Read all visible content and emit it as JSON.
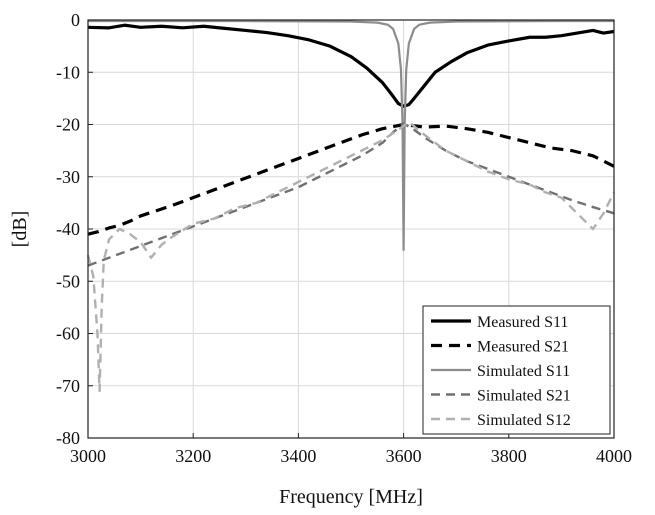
{
  "chart_data": {
    "type": "line",
    "title": "",
    "xlabel": "Frequency [MHz]",
    "ylabel": "[dB]",
    "xlim": [
      3000,
      4000
    ],
    "ylim": [
      -80,
      0
    ],
    "xticks": [
      3000,
      3200,
      3400,
      3600,
      3800,
      4000
    ],
    "yticks": [
      0,
      -10,
      -20,
      -30,
      -40,
      -50,
      -60,
      -70,
      -80
    ],
    "grid": true,
    "legend_position": "bottom-right",
    "series": [
      {
        "name": "Measured S11",
        "color": "#000000",
        "style": "solid",
        "width": 3.2,
        "x": [
          3000,
          3040,
          3070,
          3100,
          3140,
          3180,
          3220,
          3260,
          3300,
          3340,
          3380,
          3420,
          3460,
          3500,
          3530,
          3560,
          3580,
          3590,
          3600,
          3610,
          3620,
          3640,
          3660,
          3690,
          3720,
          3760,
          3800,
          3840,
          3870,
          3900,
          3930,
          3960,
          3980,
          4000
        ],
        "y": [
          -1.4,
          -1.5,
          -1.0,
          -1.4,
          -1.2,
          -1.5,
          -1.2,
          -1.6,
          -2.0,
          -2.4,
          -3.0,
          -3.8,
          -5.0,
          -7.0,
          -9.2,
          -12.0,
          -14.6,
          -16.0,
          -16.5,
          -16.2,
          -15.0,
          -12.5,
          -10.0,
          -8.0,
          -6.3,
          -4.8,
          -4.0,
          -3.3,
          -3.3,
          -3.0,
          -2.5,
          -2.0,
          -2.5,
          -2.2
        ]
      },
      {
        "name": "Measured S21",
        "color": "#000000",
        "style": "dashed",
        "width": 3.2,
        "x": [
          3000,
          3020,
          3040,
          3060,
          3080,
          3100,
          3130,
          3160,
          3200,
          3240,
          3280,
          3320,
          3360,
          3400,
          3440,
          3480,
          3520,
          3560,
          3600,
          3640,
          3680,
          3720,
          3760,
          3800,
          3840,
          3880,
          3920,
          3960,
          3980,
          4000
        ],
        "y": [
          -41.0,
          -40.5,
          -39.8,
          -39.3,
          -38.5,
          -37.5,
          -36.5,
          -35.5,
          -34.0,
          -32.5,
          -31.0,
          -29.5,
          -28.0,
          -26.5,
          -25.0,
          -23.5,
          -22.0,
          -20.8,
          -20.0,
          -20.5,
          -20.3,
          -20.8,
          -21.5,
          -22.5,
          -23.5,
          -24.5,
          -25.0,
          -26.0,
          -27.0,
          -28.0
        ]
      },
      {
        "name": "Simulated S11",
        "color": "#8c8c8c",
        "style": "solid",
        "width": 2.2,
        "x": [
          3000,
          3300,
          3500,
          3550,
          3570,
          3580,
          3590,
          3595,
          3598,
          3600,
          3602,
          3605,
          3610,
          3620,
          3630,
          3650,
          3700,
          3900,
          4000
        ],
        "y": [
          -0.2,
          -0.2,
          -0.3,
          -0.5,
          -0.9,
          -1.7,
          -4.5,
          -9.5,
          -20.0,
          -44.0,
          -20.0,
          -9.5,
          -4.5,
          -1.7,
          -0.9,
          -0.5,
          -0.3,
          -0.2,
          -0.2
        ]
      },
      {
        "name": "Simulated S21",
        "color": "#707070",
        "style": "dashed",
        "width": 2.4,
        "x": [
          3000,
          3040,
          3080,
          3120,
          3160,
          3200,
          3240,
          3280,
          3320,
          3360,
          3400,
          3440,
          3480,
          3520,
          3560,
          3580,
          3600,
          3620,
          3640,
          3680,
          3720,
          3760,
          3800,
          3840,
          3880,
          3920,
          3960,
          4000
        ],
        "y": [
          -47.0,
          -45.5,
          -44.0,
          -42.5,
          -41.0,
          -39.5,
          -38.0,
          -36.5,
          -35.0,
          -33.5,
          -32.0,
          -30.0,
          -28.0,
          -26.0,
          -23.5,
          -21.5,
          -19.8,
          -21.0,
          -22.5,
          -25.0,
          -27.0,
          -28.5,
          -30.0,
          -31.5,
          -33.0,
          -34.5,
          -35.8,
          -37.0
        ]
      },
      {
        "name": "Simulated S12",
        "color": "#b0b0b0",
        "style": "dashed",
        "width": 2.4,
        "x": [
          3000,
          3010,
          3018,
          3022,
          3026,
          3030,
          3040,
          3060,
          3080,
          3100,
          3120,
          3140,
          3160,
          3200,
          3240,
          3280,
          3320,
          3360,
          3400,
          3440,
          3480,
          3520,
          3560,
          3590,
          3610,
          3640,
          3680,
          3720,
          3760,
          3800,
          3840,
          3870,
          3900,
          3940,
          3960,
          3980,
          4000
        ],
        "y": [
          -45.0,
          -49.0,
          -60.0,
          -71.0,
          -55.0,
          -46.0,
          -42.0,
          -40.0,
          -41.0,
          -42.5,
          -45.5,
          -43.0,
          -41.5,
          -39.0,
          -38.0,
          -36.0,
          -35.0,
          -33.0,
          -31.0,
          -29.0,
          -27.0,
          -25.0,
          -23.0,
          -21.0,
          -19.5,
          -22.0,
          -25.0,
          -27.0,
          -29.0,
          -30.5,
          -31.5,
          -33.0,
          -34.0,
          -38.0,
          -40.0,
          -37.0,
          -33.0
        ]
      }
    ]
  }
}
